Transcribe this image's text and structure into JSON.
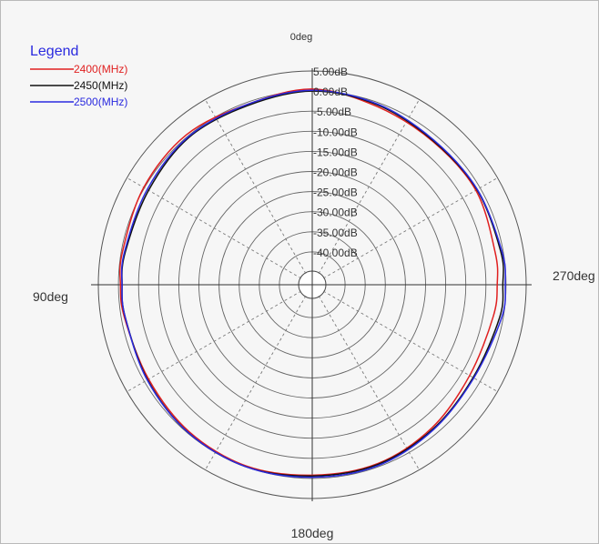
{
  "chart_data": {
    "type": "polar",
    "legend": {
      "title": "Legend",
      "placement": "top-left",
      "entries": [
        {
          "label": "2400(MHz)",
          "color": "#e02020"
        },
        {
          "label": "2450(MHz)",
          "color": "#111111"
        },
        {
          "label": "2500(MHz)",
          "color": "#2a2adf"
        }
      ]
    },
    "angle_labels": {
      "top": "0deg",
      "right": "270deg",
      "bottom": "180deg",
      "left": "90deg"
    },
    "radial_axis": {
      "max_db": 5,
      "min_db": -45,
      "tick_labels": [
        "5.00dB",
        "0.00dB",
        "-5.00dB",
        "-10.00dB",
        "-15.00dB",
        "-20.00dB",
        "-25.00dB",
        "-30.00dB",
        "-35.00dB",
        "-40.00dB"
      ],
      "tick_values": [
        5,
        0,
        -5,
        -10,
        -15,
        -20,
        -25,
        -30,
        -35,
        -40
      ]
    },
    "angular_grid_step_deg": 30,
    "angle_direction": "counterclockwise",
    "series": [
      {
        "name": "2400(MHz)",
        "color": "#e02020",
        "angles_deg": [
          0,
          20,
          40,
          60,
          80,
          90,
          100,
          120,
          140,
          160,
          180,
          200,
          220,
          240,
          260,
          270,
          280,
          300,
          320,
          340
        ],
        "values_db": [
          0.5,
          -0.5,
          0.5,
          0.2,
          -0.3,
          -0.5,
          -0.8,
          -1.2,
          -0.5,
          -0.2,
          -0.8,
          -0.8,
          -1.8,
          -3.0,
          -2.5,
          -2.2,
          -2.0,
          -1.2,
          -1.6,
          -1.0
        ]
      },
      {
        "name": "2450(MHz)",
        "color": "#111111",
        "angles_deg": [
          0,
          20,
          40,
          60,
          80,
          90,
          100,
          120,
          140,
          160,
          180,
          200,
          220,
          240,
          260,
          270,
          280,
          300,
          320,
          340
        ],
        "values_db": [
          0.0,
          -0.8,
          -0.4,
          -1.2,
          -1.0,
          -0.9,
          -1.0,
          -0.9,
          -0.2,
          0.0,
          -0.6,
          -0.6,
          -1.4,
          -2.0,
          -0.9,
          -0.8,
          -0.6,
          -0.9,
          -1.4,
          -0.6
        ]
      },
      {
        "name": "2500(MHz)",
        "color": "#2a2adf",
        "angles_deg": [
          0,
          20,
          40,
          60,
          80,
          90,
          100,
          120,
          140,
          160,
          180,
          200,
          220,
          240,
          260,
          270,
          280,
          300,
          320,
          340
        ],
        "values_db": [
          0.2,
          -0.5,
          -0.2,
          -0.8,
          -0.8,
          -0.9,
          -1.0,
          -0.8,
          -0.2,
          0.0,
          -0.3,
          -0.3,
          -1.2,
          -1.8,
          -0.4,
          -0.2,
          -0.3,
          -0.8,
          -1.2,
          -0.4
        ]
      }
    ]
  }
}
